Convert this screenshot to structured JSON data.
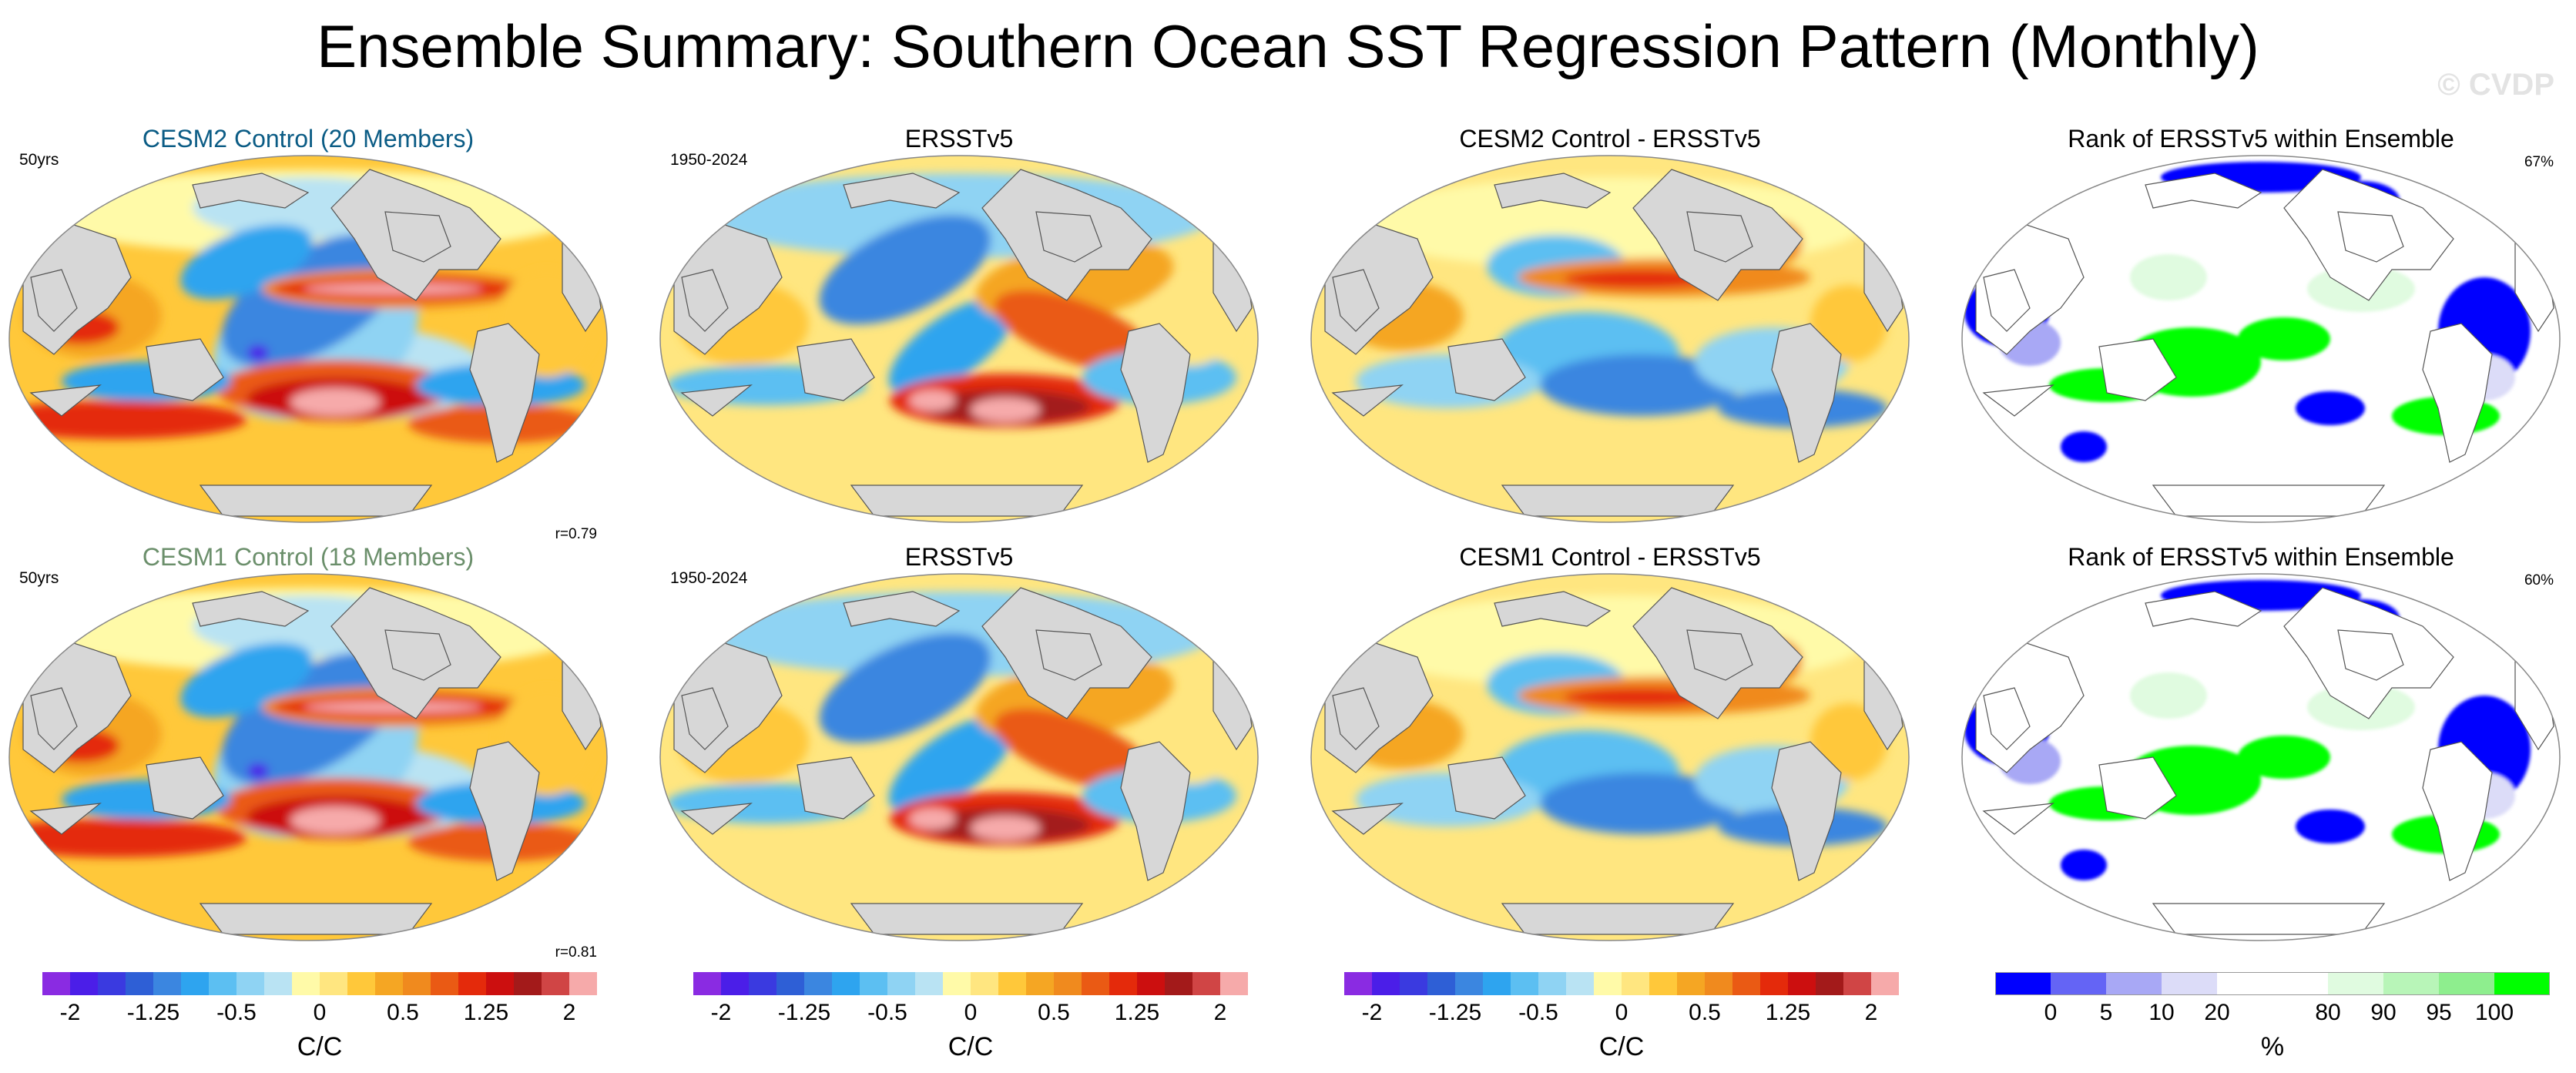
{
  "title": "Ensemble Summary: Southern Ocean SST Regression Pattern (Monthly)",
  "watermark": "© CVDP",
  "colors": {
    "title_cesm2": "#0b5c85",
    "title_cesm1": "#6b8f6b",
    "land": "#d7d7d7",
    "diverging_scale": [
      "#8a2be2",
      "#4b1ee8",
      "#3a3ae0",
      "#2e5fd6",
      "#3b86e0",
      "#2ea4ef",
      "#5cbff2",
      "#8fd3f3",
      "#b9e3f3",
      "#fffaa8",
      "#ffe680",
      "#ffc83a",
      "#f5a623",
      "#f08a1e",
      "#ea5a14",
      "#e42a0b",
      "#cc0f0f",
      "#a31a1a",
      "#d04545",
      "#f6aaaa"
    ],
    "rank_scale": [
      "#0000ff",
      "#6464f5",
      "#a8a8f5",
      "#dcdcf8",
      "#ffffff",
      "#ffffff",
      "#e0fbe0",
      "#b8f5b8",
      "#8eee8e",
      "#00ff00"
    ]
  },
  "chart_data": [
    {
      "type": "heatmap",
      "id": "cesm2-mean",
      "title": "CESM2 Control (20 Members)",
      "left_label": "50yrs",
      "corner_label": "r=0.79"
    },
    {
      "type": "heatmap",
      "id": "obs-top",
      "title": "ERSSTv5",
      "left_label": "1950-2024"
    },
    {
      "type": "heatmap",
      "id": "cesm2-diff",
      "title": "CESM2 Control - ERSSTv5"
    },
    {
      "type": "heatmap",
      "id": "cesm2-rank",
      "title": "Rank of ERSSTv5 within Ensemble",
      "right_label": "67%"
    },
    {
      "type": "heatmap",
      "id": "cesm1-mean",
      "title": "CESM1 Control (18 Members)",
      "left_label": "50yrs",
      "corner_label": "r=0.81"
    },
    {
      "type": "heatmap",
      "id": "obs-bottom",
      "title": "ERSSTv5",
      "left_label": "1950-2024"
    },
    {
      "type": "heatmap",
      "id": "cesm1-diff",
      "title": "CESM1 Control - ERSSTv5"
    },
    {
      "type": "heatmap",
      "id": "cesm1-rank",
      "title": "Rank of ERSSTv5 within Ensemble",
      "right_label": "60%"
    }
  ],
  "colorbars": [
    {
      "label": "C/C",
      "ticks": [
        {
          "text": "-2",
          "pos": 0.05
        },
        {
          "text": "-1.25",
          "pos": 0.2
        },
        {
          "text": "-0.5",
          "pos": 0.35
        },
        {
          "text": "0",
          "pos": 0.5
        },
        {
          "text": "0.5",
          "pos": 0.65
        },
        {
          "text": "1.25",
          "pos": 0.8
        },
        {
          "text": "2",
          "pos": 0.95
        }
      ]
    },
    {
      "label": "C/C",
      "ticks": [
        {
          "text": "-2",
          "pos": 0.05
        },
        {
          "text": "-1.25",
          "pos": 0.2
        },
        {
          "text": "-0.5",
          "pos": 0.35
        },
        {
          "text": "0",
          "pos": 0.5
        },
        {
          "text": "0.5",
          "pos": 0.65
        },
        {
          "text": "1.25",
          "pos": 0.8
        },
        {
          "text": "2",
          "pos": 0.95
        }
      ]
    },
    {
      "label": "C/C",
      "ticks": [
        {
          "text": "-2",
          "pos": 0.05
        },
        {
          "text": "-1.25",
          "pos": 0.2
        },
        {
          "text": "-0.5",
          "pos": 0.35
        },
        {
          "text": "0",
          "pos": 0.5
        },
        {
          "text": "0.5",
          "pos": 0.65
        },
        {
          "text": "1.25",
          "pos": 0.8
        },
        {
          "text": "2",
          "pos": 0.95
        }
      ]
    },
    {
      "label": "%",
      "ticks": [
        {
          "text": "0",
          "pos": 0.1
        },
        {
          "text": "5",
          "pos": 0.2
        },
        {
          "text": "10",
          "pos": 0.3
        },
        {
          "text": "20",
          "pos": 0.4
        },
        {
          "text": "80",
          "pos": 0.6
        },
        {
          "text": "90",
          "pos": 0.7
        },
        {
          "text": "95",
          "pos": 0.8
        },
        {
          "text": "100",
          "pos": 0.9
        }
      ]
    }
  ]
}
